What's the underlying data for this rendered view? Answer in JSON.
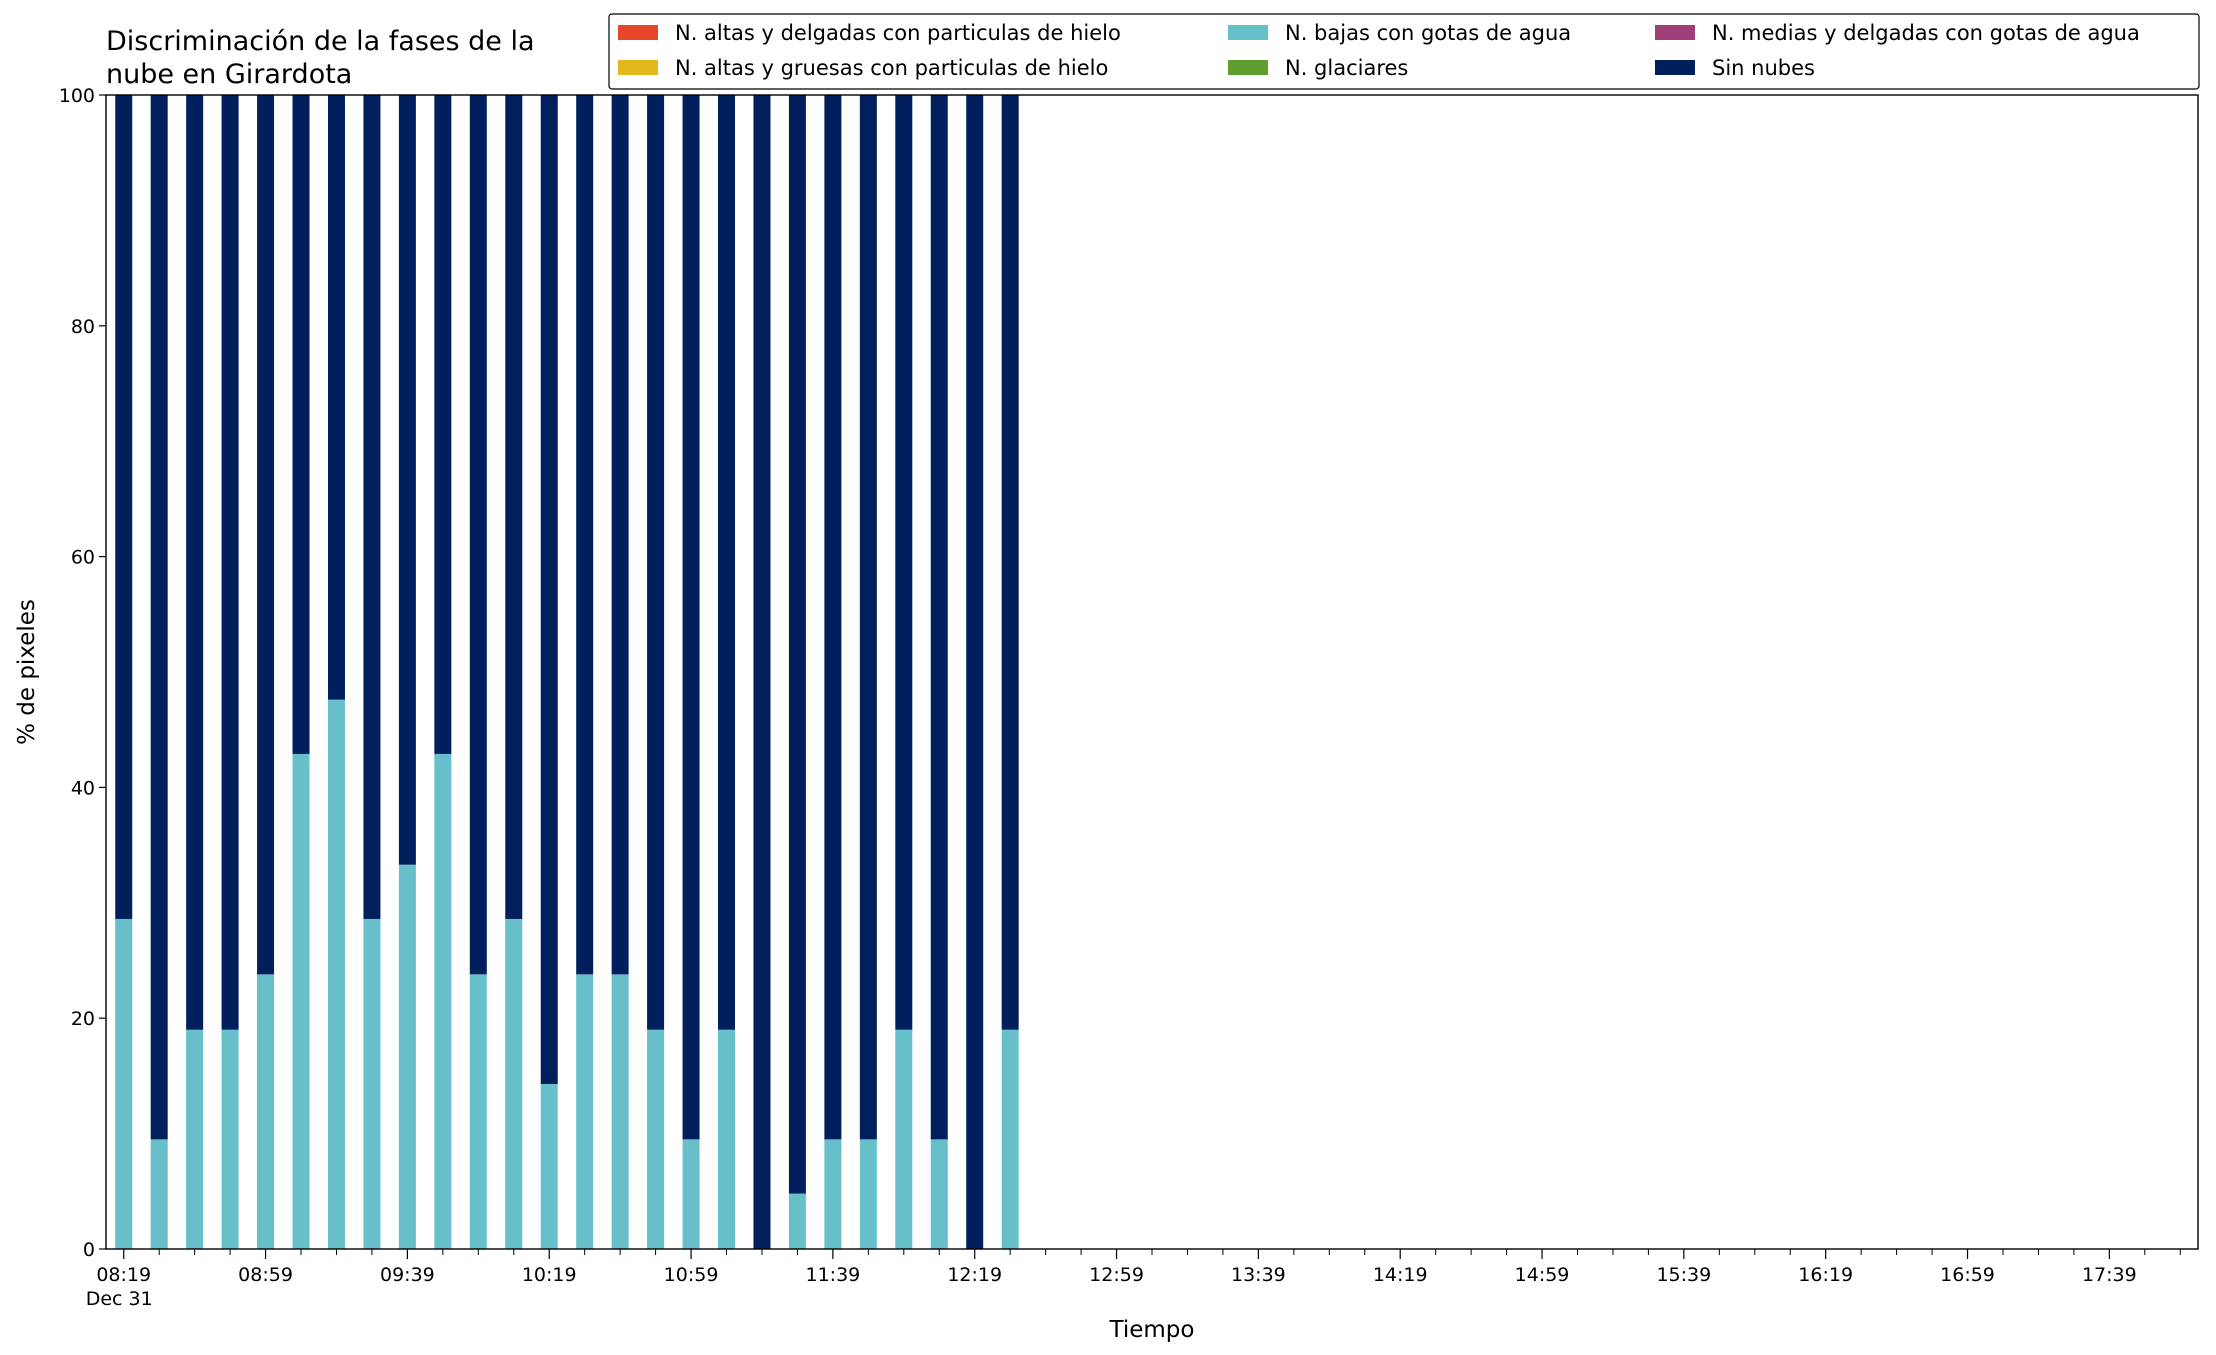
{
  "chart_data": {
    "type": "stacked_bar",
    "title": [
      "Discriminación de la fases de la",
      "nube en Girardota"
    ],
    "xlabel": "Tiempo",
    "ylabel": "% de pixeles",
    "x": [
      "08:19",
      "08:29",
      "08:39",
      "08:49",
      "08:59",
      "09:09",
      "09:19",
      "09:29",
      "09:39",
      "09:49",
      "09:59",
      "10:09",
      "10:19",
      "10:29",
      "10:39",
      "10:49",
      "10:59",
      "11:09",
      "11:19",
      "11:29",
      "11:39",
      "11:49",
      "11:59",
      "12:09",
      "12:19",
      "12:29"
    ],
    "series": [
      {
        "name": "N. altas y delgadas con particulas de hielo",
        "color": "#e8462a",
        "values": [
          0,
          0,
          0,
          0,
          0,
          0,
          0,
          0,
          0,
          0,
          0,
          0,
          0,
          0,
          0,
          0,
          0,
          0,
          0,
          0,
          0,
          0,
          0,
          0,
          0,
          0
        ]
      },
      {
        "name": "N. altas y gruesas con particulas de hielo",
        "color": "#e3b81c",
        "values": [
          0,
          0,
          0,
          0,
          0,
          0,
          0,
          0,
          0,
          0,
          0,
          0,
          0,
          0,
          0,
          0,
          0,
          0,
          0,
          0,
          0,
          0,
          0,
          0,
          0,
          0
        ]
      },
      {
        "name": "N. bajas con gotas de agua",
        "color": "#66bfc9",
        "values": [
          28.6,
          9.5,
          19,
          19,
          23.8,
          42.9,
          47.6,
          28.6,
          33.3,
          42.9,
          23.8,
          28.6,
          14.3,
          23.8,
          23.8,
          19,
          9.5,
          19,
          0,
          4.8,
          9.5,
          9.5,
          19,
          9.5,
          0,
          19
        ]
      },
      {
        "name": "N. glaciares",
        "color": "#5e9e2e",
        "values": [
          0,
          0,
          0,
          0,
          0,
          0,
          0,
          0,
          0,
          0,
          0,
          0,
          0,
          0,
          0,
          0,
          0,
          0,
          0,
          0,
          0,
          0,
          0,
          0,
          0,
          0
        ]
      },
      {
        "name": "N. medias y delgadas con gotas de agua",
        "color": "#9e3f77",
        "values": [
          0,
          0,
          0,
          0,
          0,
          0,
          0,
          0,
          0,
          0,
          0,
          0,
          0,
          0,
          0,
          0,
          0,
          0,
          0,
          0,
          0,
          0,
          0,
          0,
          0,
          0
        ]
      },
      {
        "name": "Sin nubes",
        "color": "#001f5c",
        "values": [
          71.4,
          90.5,
          81,
          81,
          76.2,
          57.1,
          52.4,
          71.4,
          66.7,
          57.1,
          76.2,
          71.4,
          85.7,
          76.2,
          76.2,
          81,
          90.5,
          81,
          100,
          95.2,
          90.5,
          90.5,
          81,
          90.5,
          100,
          81
        ]
      }
    ],
    "xlim": [
      "08:14",
      "18:04"
    ],
    "xticks": [
      "08:19",
      "08:59",
      "09:39",
      "10:19",
      "10:59",
      "11:39",
      "12:19",
      "12:59",
      "13:39",
      "14:19",
      "14:59",
      "15:39",
      "16:19",
      "16:59",
      "17:39"
    ],
    "xminorticks": [
      "08:29",
      "08:39",
      "08:49",
      "09:09",
      "09:19",
      "09:29",
      "09:49",
      "09:59",
      "10:09",
      "10:29",
      "10:39",
      "10:49",
      "11:09",
      "11:19",
      "11:29",
      "11:49",
      "11:59",
      "12:09",
      "12:29",
      "12:39",
      "12:49",
      "13:09",
      "13:19",
      "13:29",
      "13:49",
      "13:59",
      "14:09",
      "14:29",
      "14:39",
      "14:49",
      "15:09",
      "15:19",
      "15:29",
      "15:49",
      "15:59",
      "16:09",
      "16:29",
      "16:39",
      "16:49",
      "17:09",
      "17:19",
      "17:29",
      "17:49",
      "17:59"
    ],
    "x_date_label": "Dec 31",
    "ylim": [
      0,
      100
    ],
    "yticks": [
      0,
      20,
      40,
      60,
      80,
      100
    ],
    "legend": "top-right"
  }
}
